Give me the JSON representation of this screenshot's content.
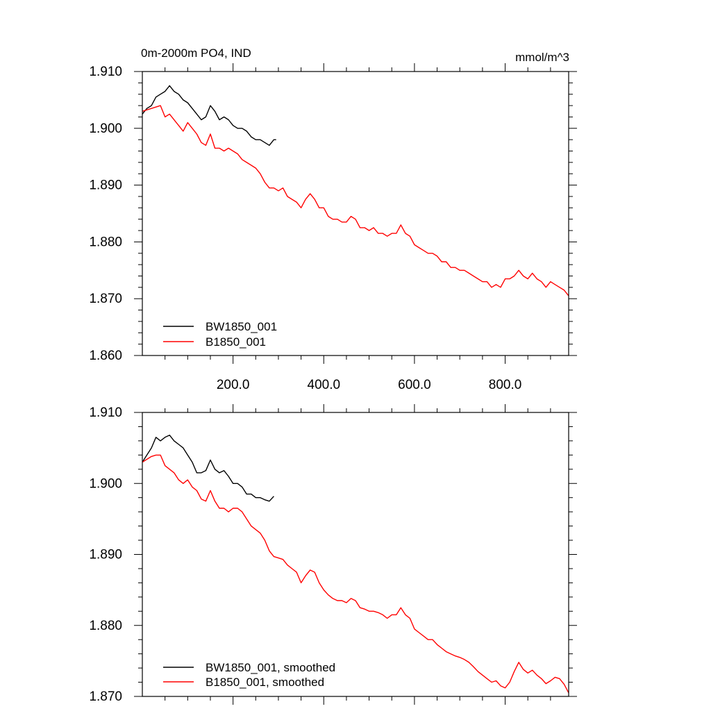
{
  "chart_data": [
    {
      "type": "line",
      "title": "0m-2000m PO4, IND",
      "units": "mmol/m^3",
      "xlim": [
        0,
        940
      ],
      "ylim": [
        1.86,
        1.91
      ],
      "x_ticks": [
        200,
        400,
        600,
        800
      ],
      "x_tick_labels": [
        "200.0",
        "400.0",
        "600.0",
        "800.0"
      ],
      "y_ticks": [
        1.86,
        1.87,
        1.88,
        1.89,
        1.9,
        1.91
      ],
      "y_tick_labels": [
        "1.860",
        "1.870",
        "1.880",
        "1.890",
        "1.900",
        "1.910"
      ],
      "legend_position": "bottom-left",
      "series": [
        {
          "name": "BW1850_001",
          "color": "#000000",
          "x": [
            0,
            10,
            20,
            30,
            40,
            50,
            60,
            70,
            80,
            90,
            100,
            110,
            120,
            130,
            140,
            150,
            160,
            170,
            180,
            190,
            200,
            210,
            220,
            230,
            240,
            250,
            260,
            270,
            280,
            290,
            295
          ],
          "y": [
            1.9025,
            1.9035,
            1.904,
            1.9055,
            1.906,
            1.9065,
            1.9075,
            1.9065,
            1.906,
            1.905,
            1.9045,
            1.9035,
            1.9025,
            1.9015,
            1.902,
            1.904,
            1.903,
            1.9015,
            1.902,
            1.9015,
            1.9005,
            1.9,
            1.9,
            1.8995,
            1.8985,
            1.898,
            1.898,
            1.8975,
            1.897,
            1.898,
            1.898
          ]
        },
        {
          "name": "B1850_001",
          "color": "#ff0000",
          "x": [
            0,
            20,
            40,
            50,
            60,
            80,
            90,
            100,
            110,
            120,
            130,
            140,
            150,
            160,
            170,
            180,
            190,
            200,
            210,
            220,
            230,
            240,
            250,
            260,
            270,
            280,
            290,
            300,
            310,
            320,
            330,
            340,
            350,
            360,
            370,
            380,
            390,
            400,
            410,
            420,
            430,
            440,
            450,
            460,
            470,
            480,
            490,
            500,
            510,
            520,
            530,
            540,
            550,
            560,
            570,
            580,
            590,
            600,
            610,
            620,
            630,
            640,
            650,
            660,
            670,
            680,
            690,
            700,
            710,
            720,
            730,
            740,
            750,
            760,
            770,
            780,
            790,
            800,
            810,
            820,
            830,
            840,
            850,
            860,
            870,
            880,
            890,
            900,
            910,
            920,
            930,
            940
          ],
          "y": [
            1.903,
            1.9035,
            1.904,
            1.902,
            1.9025,
            1.9005,
            1.8995,
            1.901,
            1.9,
            1.899,
            1.8975,
            1.897,
            1.899,
            1.8965,
            1.8965,
            1.896,
            1.8965,
            1.896,
            1.8955,
            1.8945,
            1.894,
            1.8935,
            1.893,
            1.892,
            1.8905,
            1.8895,
            1.8895,
            1.889,
            1.8895,
            1.888,
            1.8875,
            1.887,
            1.886,
            1.8875,
            1.8885,
            1.8875,
            1.886,
            1.886,
            1.8845,
            1.884,
            1.884,
            1.8835,
            1.8835,
            1.8845,
            1.884,
            1.8825,
            1.8825,
            1.882,
            1.8825,
            1.8815,
            1.8815,
            1.881,
            1.8815,
            1.8815,
            1.883,
            1.8815,
            1.881,
            1.8795,
            1.879,
            1.8785,
            1.878,
            1.878,
            1.8775,
            1.8765,
            1.8765,
            1.8755,
            1.8755,
            1.875,
            1.875,
            1.8745,
            1.874,
            1.8735,
            1.873,
            1.873,
            1.872,
            1.8725,
            1.872,
            1.8735,
            1.8735,
            1.874,
            1.875,
            1.874,
            1.8735,
            1.8745,
            1.8735,
            1.873,
            1.872,
            1.873,
            1.8725,
            1.872,
            1.8715,
            1.8705
          ]
        }
      ]
    },
    {
      "type": "line",
      "title": "",
      "xlim": [
        0,
        940
      ],
      "ylim": [
        1.87,
        1.91
      ],
      "x_ticks": [
        200,
        400,
        600,
        800
      ],
      "y_ticks": [
        1.87,
        1.88,
        1.89,
        1.9,
        1.91
      ],
      "y_tick_labels": [
        "1.870",
        "1.880",
        "1.890",
        "1.900",
        "1.910"
      ],
      "legend_position": "bottom-left",
      "series": [
        {
          "name": "BW1850_001, smoothed",
          "color": "#000000",
          "x": [
            0,
            10,
            20,
            30,
            40,
            50,
            60,
            70,
            80,
            90,
            100,
            110,
            120,
            130,
            140,
            150,
            160,
            170,
            180,
            190,
            200,
            210,
            220,
            230,
            240,
            250,
            260,
            270,
            280,
            290
          ],
          "y": [
            1.903,
            1.904,
            1.905,
            1.9065,
            1.906,
            1.9065,
            1.9068,
            1.906,
            1.9055,
            1.905,
            1.904,
            1.903,
            1.9015,
            1.9015,
            1.9018,
            1.9033,
            1.902,
            1.9015,
            1.9018,
            1.901,
            1.9,
            1.9,
            1.8995,
            1.8985,
            1.8985,
            1.898,
            1.898,
            1.8977,
            1.8975,
            1.8982
          ]
        },
        {
          "name": "B1850_001, smoothed",
          "color": "#ff0000",
          "x": [
            0,
            20,
            30,
            40,
            50,
            60,
            70,
            80,
            90,
            100,
            110,
            120,
            130,
            140,
            150,
            160,
            170,
            180,
            190,
            200,
            210,
            220,
            230,
            240,
            250,
            260,
            270,
            280,
            290,
            300,
            310,
            320,
            330,
            340,
            350,
            360,
            370,
            380,
            390,
            400,
            410,
            420,
            430,
            440,
            450,
            460,
            470,
            480,
            490,
            500,
            510,
            520,
            530,
            540,
            550,
            560,
            570,
            580,
            590,
            600,
            610,
            620,
            630,
            640,
            650,
            660,
            670,
            680,
            690,
            700,
            710,
            720,
            730,
            740,
            750,
            760,
            770,
            780,
            790,
            800,
            810,
            820,
            830,
            840,
            850,
            860,
            870,
            880,
            890,
            900,
            910,
            920,
            930,
            940
          ],
          "y": [
            1.903,
            1.9038,
            1.904,
            1.904,
            1.9025,
            1.902,
            1.9015,
            1.9005,
            1.9,
            1.9005,
            1.8995,
            1.899,
            1.8978,
            1.8975,
            1.899,
            1.8975,
            1.8965,
            1.8965,
            1.896,
            1.8965,
            1.8965,
            1.896,
            1.895,
            1.894,
            1.8935,
            1.893,
            1.892,
            1.8905,
            1.8897,
            1.8895,
            1.8893,
            1.8885,
            1.888,
            1.8875,
            1.886,
            1.887,
            1.8878,
            1.8875,
            1.886,
            1.885,
            1.8843,
            1.8838,
            1.8835,
            1.8835,
            1.8832,
            1.8838,
            1.8835,
            1.8825,
            1.8823,
            1.882,
            1.882,
            1.8818,
            1.8815,
            1.881,
            1.8815,
            1.8815,
            1.8825,
            1.8815,
            1.881,
            1.8795,
            1.879,
            1.8785,
            1.878,
            1.878,
            1.8773,
            1.8768,
            1.8763,
            1.876,
            1.8757,
            1.8755,
            1.8752,
            1.8748,
            1.8742,
            1.8735,
            1.873,
            1.8725,
            1.872,
            1.8722,
            1.8715,
            1.8712,
            1.872,
            1.8735,
            1.8748,
            1.8738,
            1.8733,
            1.8737,
            1.873,
            1.8725,
            1.8718,
            1.8722,
            1.8727,
            1.8725,
            1.8717,
            1.8705
          ]
        }
      ]
    }
  ]
}
